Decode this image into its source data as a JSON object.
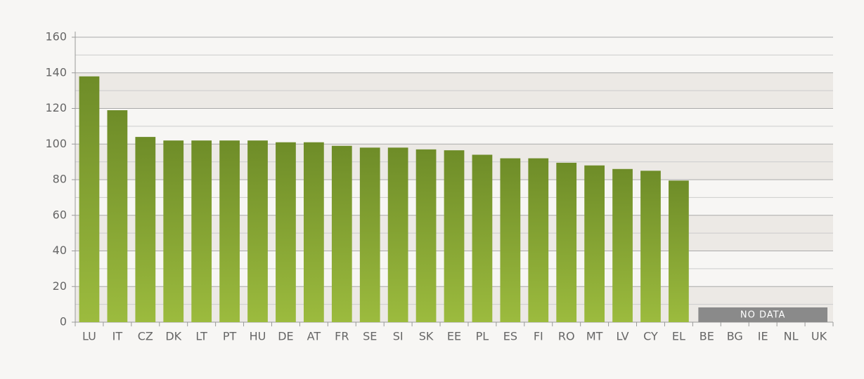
{
  "chart_data": {
    "type": "bar",
    "categories": [
      "LU",
      "IT",
      "CZ",
      "DK",
      "LT",
      "PT",
      "HU",
      "DE",
      "AT",
      "FR",
      "SE",
      "SI",
      "SK",
      "EE",
      "PL",
      "ES",
      "FI",
      "RO",
      "MT",
      "LV",
      "CY",
      "EL",
      "BE",
      "BG",
      "IE",
      "NL",
      "UK"
    ],
    "values": [
      138,
      119,
      104,
      102,
      102,
      102,
      102,
      101,
      101,
      99,
      98,
      98,
      97,
      96.5,
      94,
      92,
      92,
      89.5,
      88,
      86,
      85,
      79.5,
      null,
      null,
      null,
      null,
      null
    ],
    "color": "#7a9a2e",
    "ylim": [
      0,
      160
    ],
    "yticks": [
      0,
      20,
      40,
      60,
      80,
      100,
      120,
      140,
      160
    ],
    "grid": true,
    "annotation": "NO DATA"
  }
}
